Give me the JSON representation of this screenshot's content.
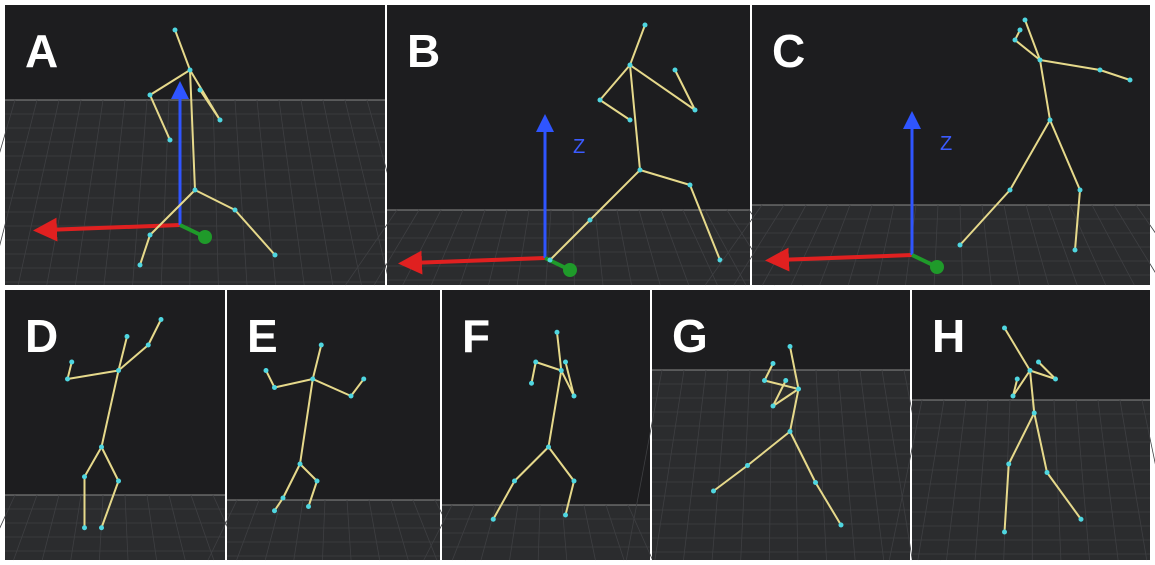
{
  "panels": [
    {
      "label": "A"
    },
    {
      "label": "B",
      "axis_label": "Z"
    },
    {
      "label": "C",
      "axis_label": "Z"
    },
    {
      "label": "D"
    },
    {
      "label": "E"
    },
    {
      "label": "F"
    },
    {
      "label": "G"
    },
    {
      "label": "H"
    }
  ]
}
